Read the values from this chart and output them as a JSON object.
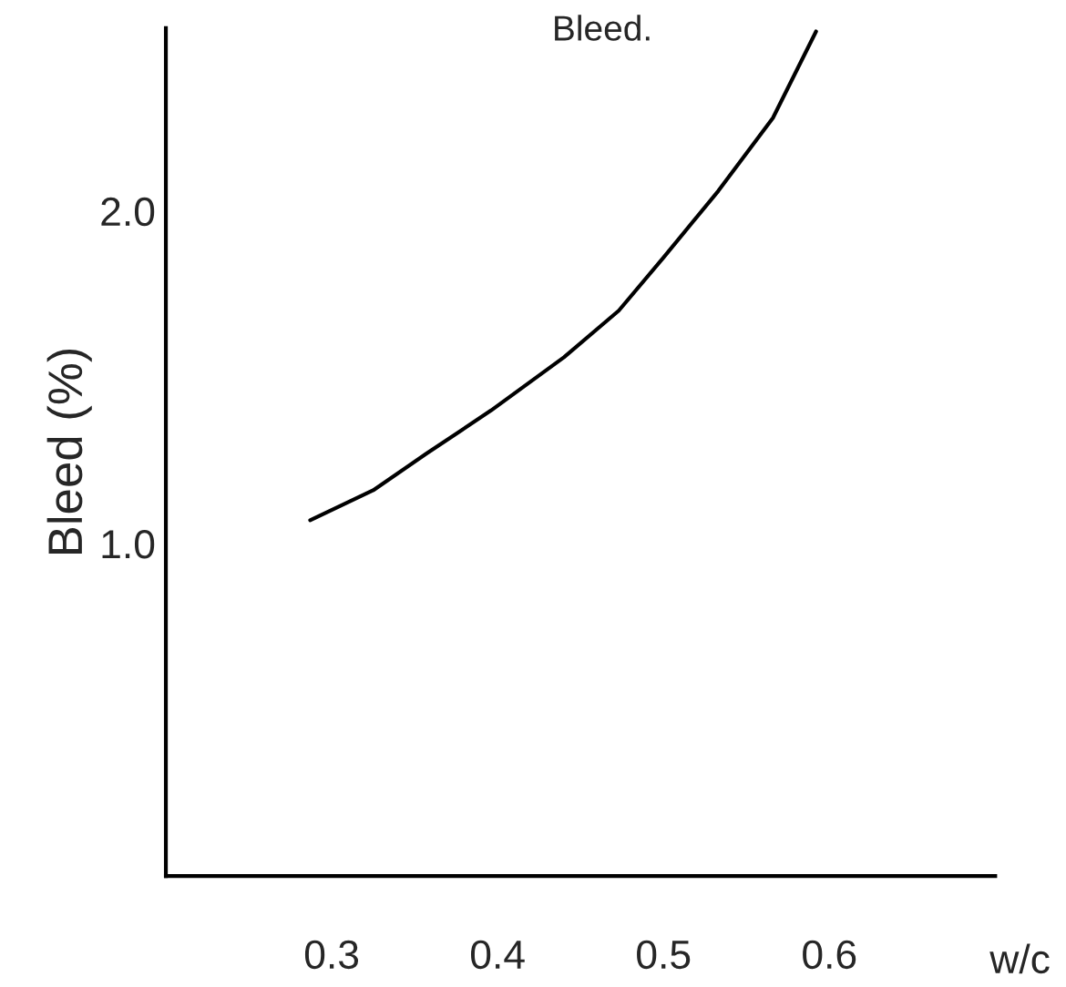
{
  "chart_data": {
    "type": "line",
    "title": "Bleed.",
    "xlabel": "w/c",
    "ylabel": "Bleed (%)",
    "xlim": [
      0.2,
      0.7
    ],
    "xticks": [
      0.3,
      0.4,
      0.5,
      0.6
    ],
    "ylim": [
      0,
      2.55
    ],
    "yticks": [
      {
        "value": 1.0,
        "label": "1.0"
      },
      {
        "value": 2.0,
        "label": "2.0"
      }
    ],
    "grid": false,
    "marker": "none",
    "line_style": "solid",
    "series": [
      {
        "color": "#000000",
        "x": [
          0.287,
          0.325,
          0.357,
          0.396,
          0.44,
          0.473,
          0.5,
          0.533,
          0.566,
          0.592
        ],
        "values": [
          1.07,
          1.16,
          1.27,
          1.4,
          1.56,
          1.7,
          1.86,
          2.06,
          2.28,
          2.54
        ]
      }
    ]
  }
}
